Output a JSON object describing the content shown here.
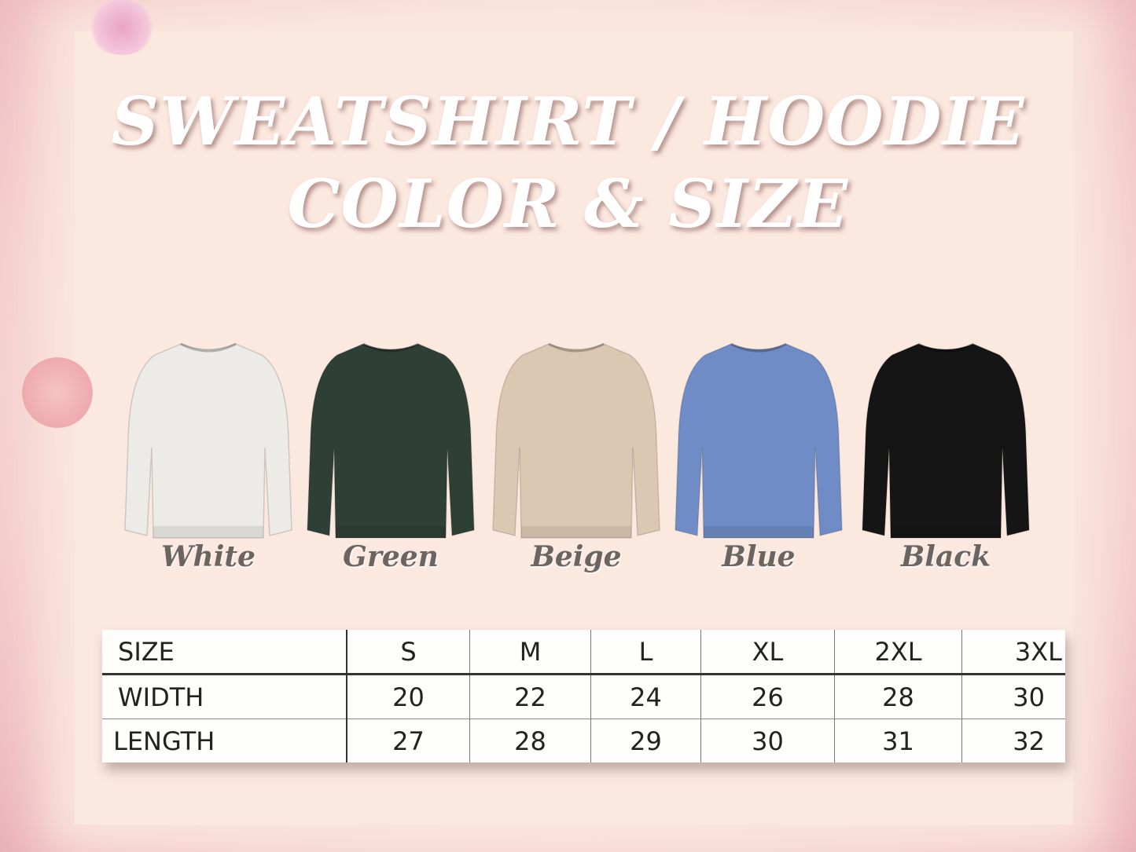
{
  "title": {
    "line1": "SWEATSHIRT / HOODIE",
    "line2": "COLOR & SIZE"
  },
  "colors": [
    {
      "name": "White",
      "hex": "#ecebe8"
    },
    {
      "name": "Green",
      "hex": "#2e3f36"
    },
    {
      "name": "Beige",
      "hex": "#dcc8b2"
    },
    {
      "name": "Blue",
      "hex": "#6f8cc6"
    },
    {
      "name": "Black",
      "hex": "#151515"
    }
  ],
  "size_table": {
    "header": [
      "SIZE",
      "S",
      "M",
      "L",
      "XL",
      "2XL",
      "3XL"
    ],
    "rows": [
      [
        "WIDTH",
        "20",
        "22",
        "24",
        "26",
        "28",
        "30"
      ],
      [
        "LENGTH",
        "27",
        "28",
        "29",
        "30",
        "31",
        "32"
      ]
    ]
  }
}
